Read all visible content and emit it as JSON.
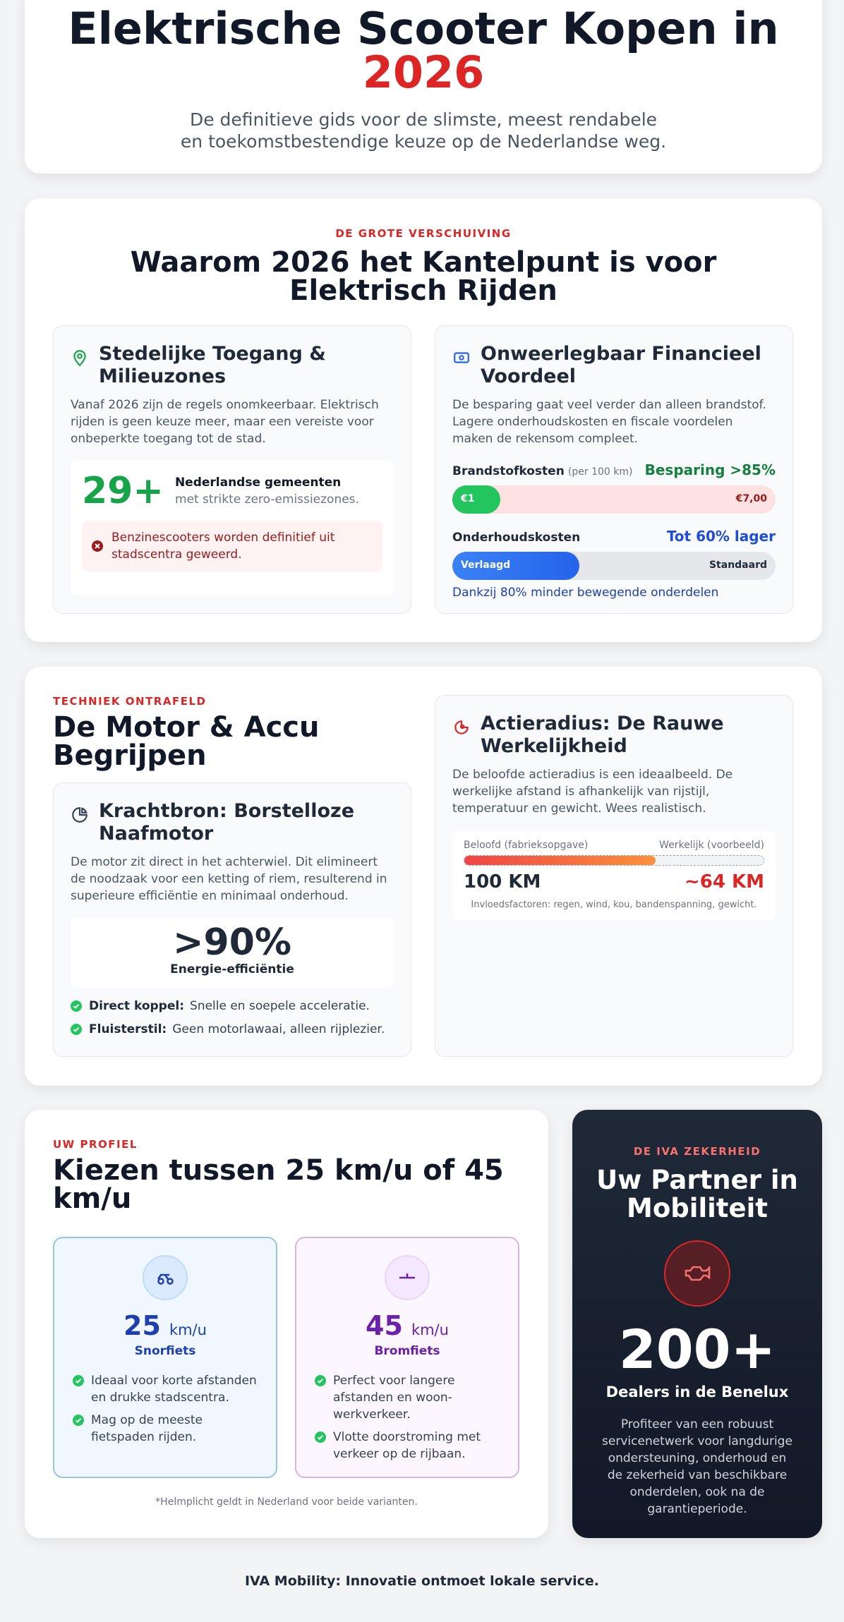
{
  "header": {
    "title": "Elektrische Scooter Kopen in",
    "title_highlight": "2026",
    "subtitle": "De definitieve gids voor de slimste, meest rendabele en toekomstbestendige keuze op de Nederlandse weg."
  },
  "shift": {
    "eyebrow": "DE GROTE VERSCHUIVING",
    "title": "Waarom 2026 het Kantelpunt is voor Elektrisch Rijden",
    "urban": {
      "title": "Stedelijke Toegang & Milieuzones",
      "text": "Vanaf 2026 zijn de regels onomkeerbaar. Elektrisch rijden is geen keuze meer, maar een vereiste voor onbeperkte toegang tot de stad.",
      "stat": "29+",
      "stat_label": "Nederlandse gemeenten",
      "stat_sub": "met strikte zero-emissiezones.",
      "warning": "Benzinescooters worden definitief uit stadscentra geweerd."
    },
    "finance": {
      "title": "Onweerlegbaar Financieel Voordeel",
      "text": "De besparing gaat veel verder dan alleen brandstof. Lagere onderhoudskosten en fiscale voordelen maken de rekensom compleet.",
      "fuel_label": "Brandstofkosten",
      "fuel_unit": "(per 100 km)",
      "fuel_saving": "Besparing >85%",
      "fuel_electric": "€1",
      "fuel_petrol": "€7,00",
      "maint_label": "Onderhoudskosten",
      "maint_saving": "Tot 60% lager",
      "maint_electric": "Verlaagd",
      "maint_petrol": "Standaard",
      "maint_note": "Dankzij 80% minder bewegende onderdelen"
    }
  },
  "tech": {
    "eyebrow": "TECHNIEK ONTRAFELD",
    "title": "De Motor & Accu Begrijpen",
    "motor": {
      "title": "Krachtbron: Borstelloze Naafmotor",
      "text": "De motor zit direct in het achterwiel. Dit elimineert de noodzaak voor een ketting of riem, resulterend in superieure efficiëntie en minimaal onderhoud.",
      "stat": ">90%",
      "stat_label": "Energie-efficiëntie",
      "points": [
        {
          "label": "Direct koppel:",
          "text": "Snelle en soepele acceleratie."
        },
        {
          "label": "Fluisterstil:",
          "text": "Geen motorlawaai, alleen rijplezier."
        }
      ]
    },
    "range": {
      "title": "Actieradius: De Rauwe Werkelijkheid",
      "text": "De beloofde actieradius is een ideaalbeeld. De werkelijke afstand is afhankelijk van rijstijl, temperatuur en gewicht. Wees realistisch.",
      "promised_label": "Beloofd (fabrieksopgave)",
      "actual_label": "Werkelijk (voorbeeld)",
      "promised": "100 KM",
      "actual": "~64 KM",
      "note": "Invloedsfactoren: regen, wind, kou, bandenspanning, gewicht."
    }
  },
  "profile": {
    "eyebrow": "UW PROFIEL",
    "title": "Kiezen tussen 25 km/u of 45 km/u",
    "options": [
      {
        "speed": "25",
        "unit": "km/u",
        "name": "Snorfiets",
        "points": [
          "Ideaal voor korte afstanden en drukke stadscentra.",
          "Mag op de meeste fietspaden rijden."
        ]
      },
      {
        "speed": "45",
        "unit": "km/u",
        "name": "Bromfiets",
        "points": [
          "Perfect voor langere afstanden en woon-werkverkeer.",
          "Vlotte doorstroming met verkeer op de rijbaan."
        ]
      }
    ],
    "note": "*Helmplicht geldt in Nederland voor beide varianten."
  },
  "partner": {
    "eyebrow": "DE IVA ZEKERHEID",
    "title": "Uw Partner in Mobiliteit",
    "stat": "200+",
    "stat_label": "Dealers in de Benelux",
    "text": "Profiteer van een robuust servicenetwerk voor langdurige ondersteuning, onderhoud en de zekerheid van beschikbare onderdelen, ook na de garantieperiode."
  },
  "footer": "IVA Mobility: Innovatie ontmoet lokale service."
}
